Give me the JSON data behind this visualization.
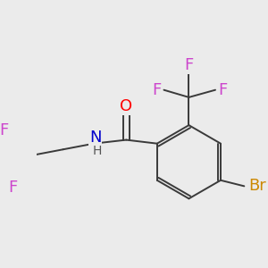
{
  "background_color": "#ebebeb",
  "bond_color": "#3a3a3a",
  "bond_width": 1.4,
  "atom_colors": {
    "O": "#ff0000",
    "N": "#0000cc",
    "F": "#cc44cc",
    "Br": "#cc8800",
    "C": "#3a3a3a"
  },
  "font_size": 13
}
